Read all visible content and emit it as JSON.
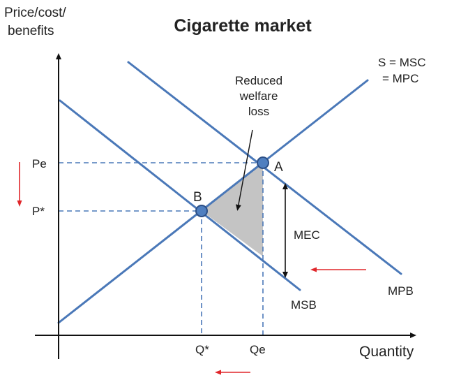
{
  "title": "Cigarette market",
  "axes": {
    "ylabel_line1": "Price/cost/",
    "ylabel_line2": "benefits",
    "xlabel": "Quantity"
  },
  "curves": {
    "supply_line1": "S = MSC",
    "supply_line2": "= MPC",
    "mpb": "MPB",
    "msb": "MSB"
  },
  "points": {
    "a": "A",
    "b": "B"
  },
  "prices": {
    "pe": "Pe",
    "pstar": "P*"
  },
  "quantities": {
    "qstar": "Q*",
    "qe": "Qe"
  },
  "annotations": {
    "area_line1": "Reduced",
    "area_line2": "welfare",
    "area_line3": "loss",
    "mec": "MEC"
  },
  "colors": {
    "curve": "#4a78b8",
    "dashed": "#4a78b8",
    "point_fill": "#4f7fc0",
    "point_stroke": "#2c4f86",
    "area_fill": "#c4c4c4",
    "shift_arrow": "#e0262a",
    "axis": "#111111"
  }
}
